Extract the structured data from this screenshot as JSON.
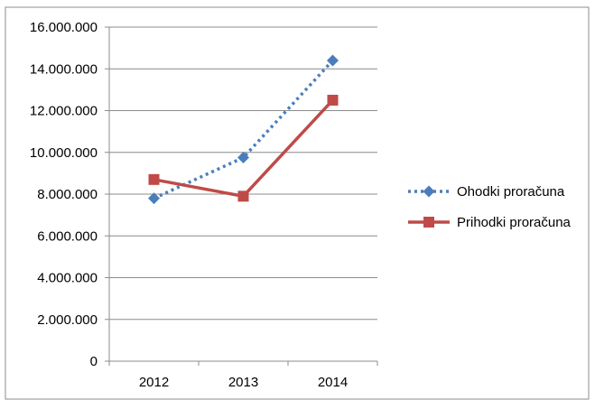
{
  "chart_data": {
    "type": "line",
    "title": "",
    "xlabel": "",
    "ylabel": "",
    "categories": [
      "2012",
      "2013",
      "2014"
    ],
    "ylim": [
      0,
      16000000
    ],
    "yticks": [
      0,
      2000000,
      4000000,
      6000000,
      8000000,
      10000000,
      12000000,
      14000000,
      16000000
    ],
    "ytick_labels": [
      "0",
      "2.000.000",
      "4.000.000",
      "6.000.000",
      "8.000.000",
      "10.000.000",
      "12.000.000",
      "14.000.000",
      "16.000.000"
    ],
    "grid": true,
    "legend_position": "right",
    "series": [
      {
        "name": "Ohodki proračuna",
        "values": [
          7800000,
          9750000,
          14400000
        ],
        "color": "#4a7ebb",
        "line_style": "dotted",
        "marker": "diamond"
      },
      {
        "name": "Prihodki proračuna",
        "values": [
          8700000,
          7900000,
          12500000
        ],
        "color": "#be4b48",
        "line_style": "solid",
        "marker": "square"
      }
    ]
  }
}
